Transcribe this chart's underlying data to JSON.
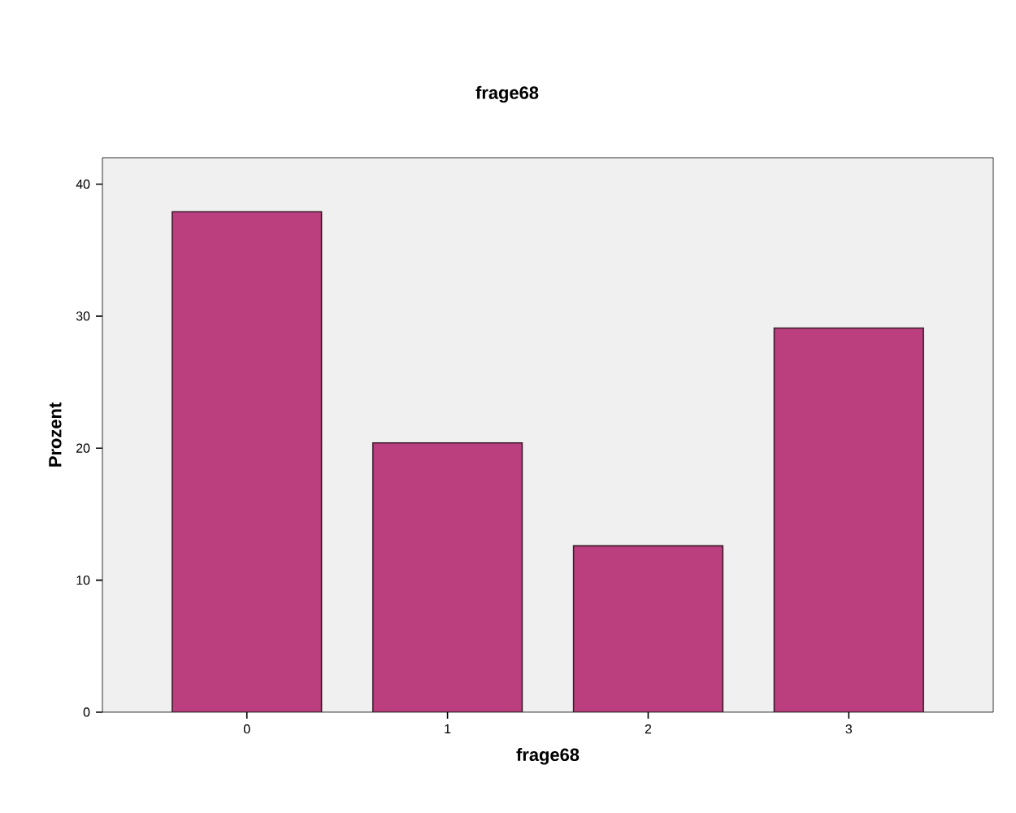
{
  "chart_data": {
    "type": "bar",
    "title": "frage68",
    "xlabel": "frage68",
    "ylabel": "Prozent",
    "categories": [
      "0",
      "1",
      "2",
      "3"
    ],
    "values": [
      37.9,
      20.4,
      12.6,
      29.1
    ],
    "color": "#bb3f7e",
    "ylim": [
      0,
      42
    ],
    "yticks": [
      0,
      10,
      20,
      30,
      40
    ]
  }
}
